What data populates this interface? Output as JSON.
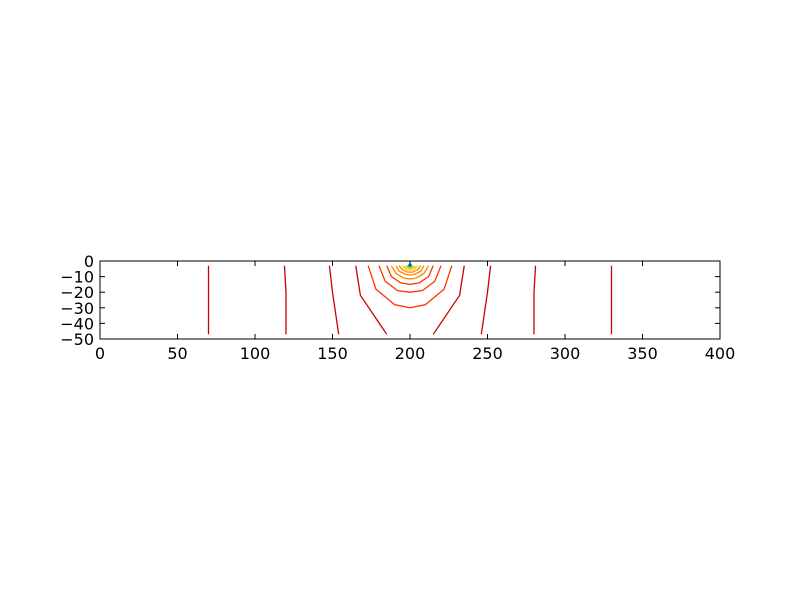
{
  "chart_data": {
    "type": "contour",
    "title": "",
    "xlabel": "",
    "ylabel": "",
    "xlim": [
      0,
      400
    ],
    "ylim": [
      -50,
      0
    ],
    "xticks": [
      "0",
      "50",
      "100",
      "150",
      "200",
      "250",
      "300",
      "350",
      "400"
    ],
    "yticks": [
      "0",
      "−10",
      "−20",
      "−30",
      "−40",
      "−50"
    ],
    "grid": false,
    "legend": "none",
    "source_point": [
      200,
      -3
    ],
    "colors": {
      "outer_contour": "#cc0000",
      "mid_contour": "#ff3300",
      "inner_contour": "#ff8800",
      "core_contour": "#ffcc00",
      "peak_contour": "#55dd00",
      "source_marker": "#00aaff",
      "axes": "#000000"
    },
    "contours": [
      {
        "level": "outer",
        "points": [
          [
            70,
            -3
          ],
          [
            70,
            -47
          ]
        ]
      },
      {
        "level": "outer",
        "points": [
          [
            330,
            -3
          ],
          [
            330,
            -47
          ]
        ]
      },
      {
        "level": "outer",
        "points": [
          [
            119,
            -3
          ],
          [
            120,
            -20
          ],
          [
            120,
            -47
          ]
        ]
      },
      {
        "level": "outer",
        "points": [
          [
            281,
            -3
          ],
          [
            280,
            -20
          ],
          [
            280,
            -47
          ]
        ]
      },
      {
        "level": "outer",
        "points": [
          [
            148,
            -3
          ],
          [
            150,
            -20
          ],
          [
            154,
            -47
          ]
        ]
      },
      {
        "level": "outer",
        "points": [
          [
            252,
            -3
          ],
          [
            250,
            -20
          ],
          [
            246,
            -47
          ]
        ]
      },
      {
        "level": "outer",
        "points": [
          [
            165,
            -3
          ],
          [
            168,
            -22
          ],
          [
            185,
            -47
          ]
        ]
      },
      {
        "level": "outer",
        "points": [
          [
            235,
            -3
          ],
          [
            232,
            -22
          ],
          [
            215,
            -47
          ]
        ]
      },
      {
        "level": "mid",
        "points": [
          [
            173,
            -3
          ],
          [
            178,
            -18
          ],
          [
            190,
            -28
          ],
          [
            200,
            -30
          ],
          [
            210,
            -28
          ],
          [
            222,
            -18
          ],
          [
            227,
            -3
          ]
        ]
      },
      {
        "level": "mid",
        "points": [
          [
            180,
            -3
          ],
          [
            184,
            -13
          ],
          [
            192,
            -19
          ],
          [
            200,
            -20
          ],
          [
            208,
            -19
          ],
          [
            216,
            -13
          ],
          [
            220,
            -3
          ]
        ]
      },
      {
        "level": "mid",
        "points": [
          [
            185,
            -3
          ],
          [
            188,
            -10
          ],
          [
            194,
            -14
          ],
          [
            200,
            -15
          ],
          [
            206,
            -14
          ],
          [
            212,
            -10
          ],
          [
            215,
            -3
          ]
        ]
      },
      {
        "level": "inner",
        "points": [
          [
            188,
            -3
          ],
          [
            191,
            -8
          ],
          [
            196,
            -11
          ],
          [
            200,
            -11.5
          ],
          [
            204,
            -11
          ],
          [
            209,
            -8
          ],
          [
            212,
            -3
          ]
        ]
      },
      {
        "level": "inner",
        "points": [
          [
            191,
            -3
          ],
          [
            193,
            -6.5
          ],
          [
            197,
            -8.5
          ],
          [
            200,
            -9
          ],
          [
            203,
            -8.5
          ],
          [
            207,
            -6.5
          ],
          [
            209,
            -3
          ]
        ]
      },
      {
        "level": "inner",
        "points": [
          [
            193,
            -3
          ],
          [
            195,
            -5.5
          ],
          [
            198,
            -7
          ],
          [
            200,
            -7.2
          ],
          [
            202,
            -7
          ],
          [
            205,
            -5.5
          ],
          [
            207,
            -3
          ]
        ]
      },
      {
        "level": "core",
        "points": [
          [
            195,
            -3
          ],
          [
            196.5,
            -4.6
          ],
          [
            198.5,
            -5.6
          ],
          [
            200,
            -5.8
          ],
          [
            201.5,
            -5.6
          ],
          [
            203.5,
            -4.6
          ],
          [
            205,
            -3
          ]
        ]
      },
      {
        "level": "core",
        "points": [
          [
            196.5,
            -3
          ],
          [
            197.5,
            -4.1
          ],
          [
            199,
            -4.7
          ],
          [
            200,
            -4.8
          ],
          [
            201,
            -4.7
          ],
          [
            202.5,
            -4.1
          ],
          [
            203.5,
            -3
          ]
        ]
      },
      {
        "level": "peak",
        "points": [
          [
            198,
            -3
          ],
          [
            198.8,
            -3.6
          ],
          [
            200,
            -3.9
          ],
          [
            201.2,
            -3.6
          ],
          [
            202,
            -3
          ]
        ]
      }
    ]
  }
}
